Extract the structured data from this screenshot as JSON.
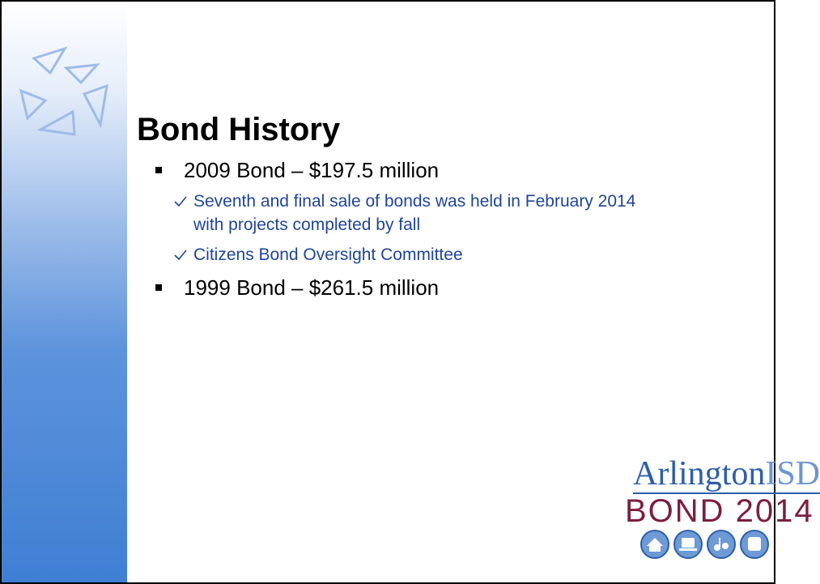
{
  "slide": {
    "title": "Bond History",
    "bullets": [
      {
        "text": "2009 Bond – $197.5 million",
        "items": [
          "Seventh and final sale of bonds was held in February 2014 with projects completed by fall",
          "Citizens Bond Oversight Committee"
        ]
      },
      {
        "text": "1999 Bond – $261.5 million",
        "items": []
      }
    ],
    "logo": {
      "name": "Arlington",
      "suffix": "ISD",
      "tagline": "BOND 2014"
    }
  }
}
